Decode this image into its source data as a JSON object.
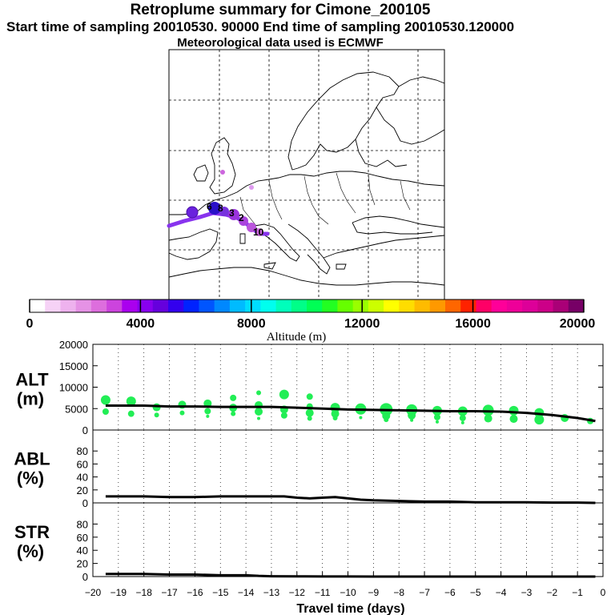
{
  "header": {
    "title": "Retroplume summary for Cimone_200105",
    "sampling": "Start time of sampling 20010530. 90000     End time of sampling 20010530.120000",
    "met": "Meteorological data used is ECMWF"
  },
  "colorbar": {
    "ticks": [
      "0",
      "4000",
      "8000",
      "12000",
      "16000",
      "20000"
    ],
    "label": "Altitude (m)",
    "colors": [
      "#ffffff",
      "#f6d2f6",
      "#eeb2ee",
      "#e592e5",
      "#dd6edd",
      "#cc44dd",
      "#aa00ee",
      "#8800ee",
      "#6600dd",
      "#3300ee",
      "#0022ff",
      "#0055ff",
      "#0088ff",
      "#00bbff",
      "#00ddff",
      "#00ffee",
      "#00ffbb",
      "#00ff88",
      "#00ff55",
      "#22ff22",
      "#66ff00",
      "#99ff00",
      "#ccff00",
      "#ffff00",
      "#ffdd00",
      "#ffbb00",
      "#ff9900",
      "#ff6600",
      "#ff2200",
      "#ff0066",
      "#ff0099",
      "#ee0099",
      "#dd0099",
      "#cc0088",
      "#aa0077",
      "#770066"
    ]
  },
  "map_labels": [
    "10",
    "2",
    "3",
    "8",
    "6"
  ],
  "chart_data": [
    {
      "type": "scatter",
      "name": "ALT",
      "ylabel": "ALT\n(m)",
      "ylabel_line1": "ALT",
      "ylabel_line2": "(m)",
      "ylim": [
        0,
        20000
      ],
      "yticks": [
        "0",
        "5000",
        "10000",
        "15000",
        "20000"
      ],
      "mean_line": {
        "x": [
          -19.5,
          -18,
          -17,
          -16,
          -15,
          -14,
          -13,
          -12,
          -11,
          -10,
          -9,
          -8,
          -7,
          -6,
          -5,
          -4,
          -3,
          -2,
          -1,
          -0.3
        ],
        "y": [
          5700,
          5700,
          5500,
          5500,
          5400,
          5400,
          5400,
          5200,
          5000,
          4800,
          4700,
          4600,
          4500,
          4400,
          4400,
          4300,
          4000,
          3500,
          2800,
          2100
        ]
      },
      "points": [
        {
          "x": -19.5,
          "y": 7000,
          "s": 6
        },
        {
          "x": -19.5,
          "y": 4300,
          "s": 4
        },
        {
          "x": -18.5,
          "y": 6700,
          "s": 6
        },
        {
          "x": -18.5,
          "y": 3800,
          "s": 4
        },
        {
          "x": -17.5,
          "y": 5300,
          "s": 5
        },
        {
          "x": -17.5,
          "y": 3500,
          "s": 3
        },
        {
          "x": -16.5,
          "y": 5900,
          "s": 5
        },
        {
          "x": -16.5,
          "y": 4000,
          "s": 3
        },
        {
          "x": -15.5,
          "y": 6200,
          "s": 5
        },
        {
          "x": -15.5,
          "y": 4400,
          "s": 4
        },
        {
          "x": -15.5,
          "y": 3200,
          "s": 2
        },
        {
          "x": -14.5,
          "y": 7500,
          "s": 4
        },
        {
          "x": -14.5,
          "y": 5200,
          "s": 5
        },
        {
          "x": -14.5,
          "y": 3800,
          "s": 3
        },
        {
          "x": -13.5,
          "y": 8700,
          "s": 3
        },
        {
          "x": -13.5,
          "y": 5800,
          "s": 5
        },
        {
          "x": -13.5,
          "y": 4300,
          "s": 5
        },
        {
          "x": -13.5,
          "y": 2700,
          "s": 2
        },
        {
          "x": -12.5,
          "y": 8300,
          "s": 6
        },
        {
          "x": -12.5,
          "y": 4800,
          "s": 5
        },
        {
          "x": -12.5,
          "y": 3400,
          "s": 4
        },
        {
          "x": -11.5,
          "y": 7800,
          "s": 4
        },
        {
          "x": -11.5,
          "y": 5500,
          "s": 4
        },
        {
          "x": -11.5,
          "y": 4000,
          "s": 5
        },
        {
          "x": -11.5,
          "y": 2700,
          "s": 3
        },
        {
          "x": -10.5,
          "y": 5200,
          "s": 6
        },
        {
          "x": -10.5,
          "y": 3800,
          "s": 5
        },
        {
          "x": -10.5,
          "y": 2800,
          "s": 3
        },
        {
          "x": -9.5,
          "y": 4900,
          "s": 7
        },
        {
          "x": -9.5,
          "y": 2900,
          "s": 2
        },
        {
          "x": -8.5,
          "y": 4800,
          "s": 8
        },
        {
          "x": -8.5,
          "y": 3300,
          "s": 5
        },
        {
          "x": -8.5,
          "y": 2400,
          "s": 3
        },
        {
          "x": -7.5,
          "y": 4700,
          "s": 7
        },
        {
          "x": -7.5,
          "y": 3400,
          "s": 5
        },
        {
          "x": -7.5,
          "y": 2300,
          "s": 2
        },
        {
          "x": -6.5,
          "y": 4500,
          "s": 6
        },
        {
          "x": -6.5,
          "y": 3000,
          "s": 4
        },
        {
          "x": -6.5,
          "y": 1900,
          "s": 2
        },
        {
          "x": -5.5,
          "y": 4400,
          "s": 6
        },
        {
          "x": -5.5,
          "y": 2800,
          "s": 4
        },
        {
          "x": -5.5,
          "y": 1700,
          "s": 2
        },
        {
          "x": -4.5,
          "y": 4600,
          "s": 7
        },
        {
          "x": -4.5,
          "y": 2700,
          "s": 5
        },
        {
          "x": -3.5,
          "y": 4500,
          "s": 6
        },
        {
          "x": -3.5,
          "y": 2600,
          "s": 5
        },
        {
          "x": -2.5,
          "y": 4000,
          "s": 6
        },
        {
          "x": -2.5,
          "y": 2400,
          "s": 6
        },
        {
          "x": -1.5,
          "y": 2800,
          "s": 5
        },
        {
          "x": -0.5,
          "y": 2100,
          "s": 4
        }
      ]
    },
    {
      "type": "line",
      "name": "ABL",
      "ylabel_line1": "ABL",
      "ylabel_line2": "(%)",
      "ylim": [
        0,
        100
      ],
      "yticks": [
        "0",
        "20",
        "40",
        "60",
        "80"
      ],
      "x": [
        -19.5,
        -18,
        -17,
        -16,
        -15,
        -14,
        -13,
        -12.5,
        -12,
        -11.5,
        -11,
        -10.5,
        -10,
        -9.5,
        -9,
        -8,
        -7,
        -6,
        -5,
        -4,
        -3,
        -2,
        -1,
        -0.3
      ],
      "y": [
        10,
        10,
        9,
        9,
        10,
        10,
        10,
        10,
        8,
        7,
        8,
        9,
        7,
        5,
        4,
        3,
        2,
        2,
        1,
        1,
        1,
        0.5,
        0.5,
        0
      ]
    },
    {
      "type": "line",
      "name": "STR",
      "ylabel_line1": "STR",
      "ylabel_line2": "(%)",
      "ylim": [
        0,
        100
      ],
      "yticks": [
        "0",
        "20",
        "40",
        "60",
        "80"
      ],
      "x": [
        -19.5,
        -18,
        -17,
        -16,
        -15,
        -14,
        -13.5,
        -13,
        -12,
        -11,
        -10,
        -9,
        -8,
        -7,
        -6,
        -5,
        -4,
        -3,
        -2,
        -1,
        -0.3
      ],
      "y": [
        4,
        4,
        3,
        3,
        2,
        2,
        1,
        0.5,
        0.3,
        0.2,
        0.1,
        0,
        0,
        0,
        0,
        0,
        0,
        0,
        0,
        0,
        0
      ]
    }
  ],
  "xaxis": {
    "label": "Travel time (days)",
    "ticks": [
      "−20",
      "−19",
      "−18",
      "−17",
      "−16",
      "−15",
      "−14",
      "−13",
      "−12",
      "−11",
      "−10",
      "−9",
      "−8",
      "−7",
      "−6",
      "−5",
      "−4",
      "−3",
      "−2",
      "−1",
      "0"
    ],
    "xlim": [
      -20,
      0
    ]
  },
  "palette": {
    "scatter": "#22ee55",
    "line": "#000000"
  }
}
